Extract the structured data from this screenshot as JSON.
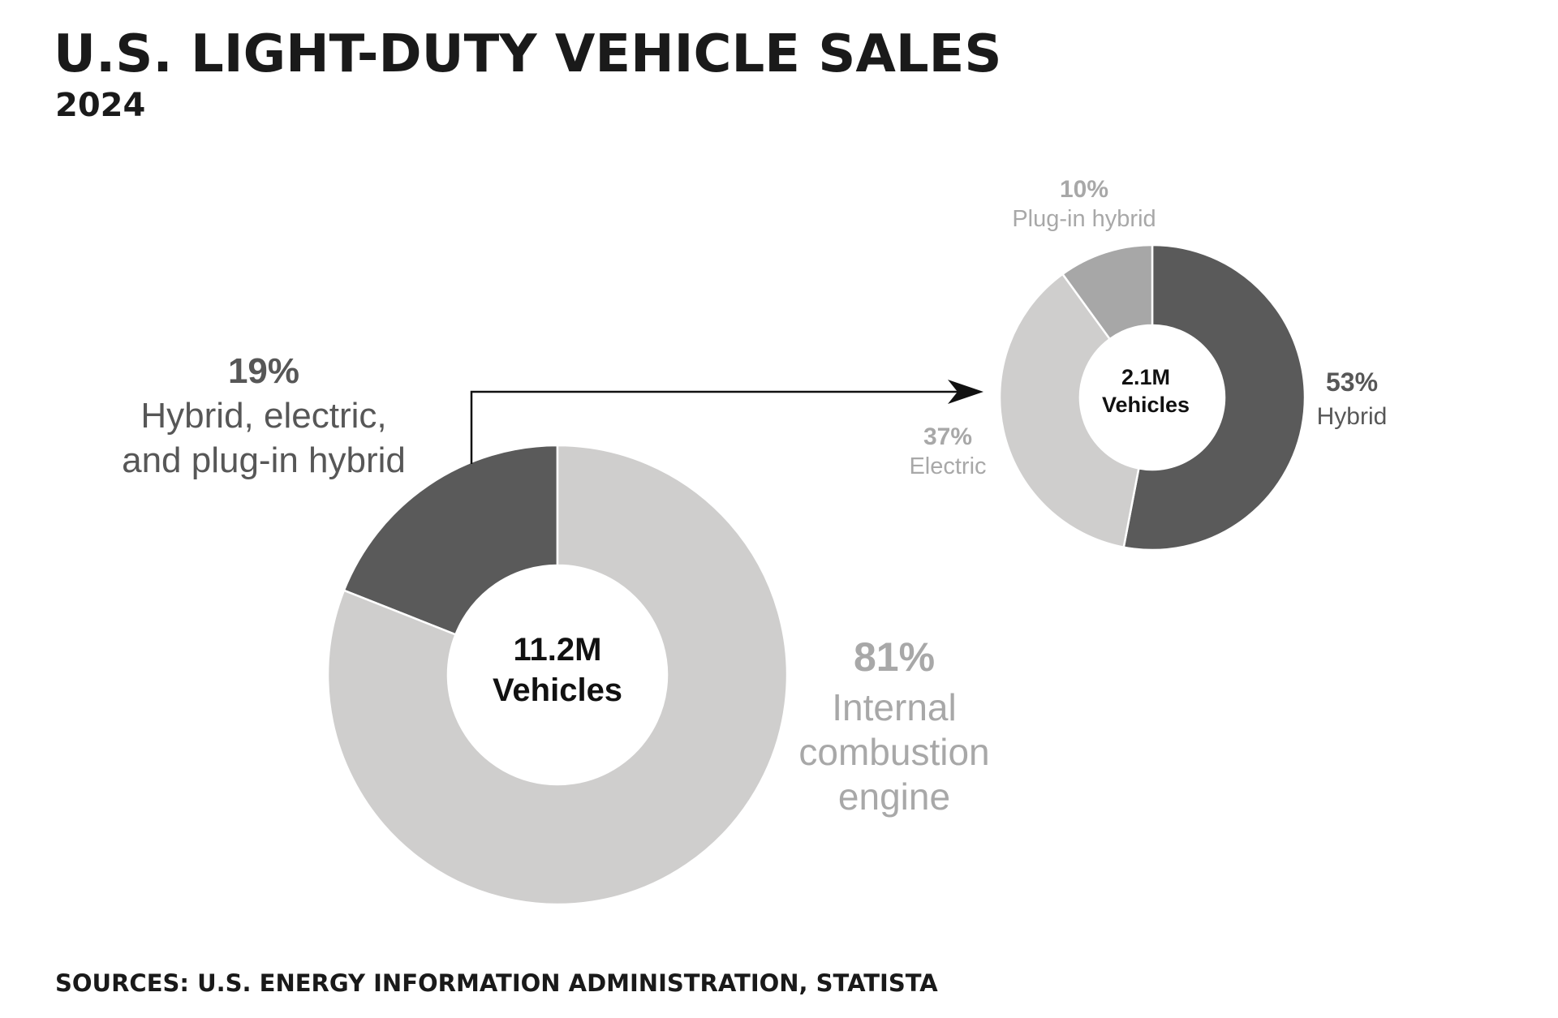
{
  "header": {
    "title": "U.S. LIGHT-DUTY VEHICLE SALES",
    "subtitle": "2024"
  },
  "footer": {
    "sources": "SOURCES: U.S. ENERGY INFORMATION ADMINISTRATION, STATISTA"
  },
  "colors": {
    "dark": "#5a5a5a",
    "light": "#cfcecd",
    "mid": "#a7a7a7",
    "text_dark": "#575757",
    "text_light": "#a8a8a8",
    "center_text": "#111111"
  },
  "chart_data": [
    {
      "type": "pie",
      "variant": "donut",
      "center_label": [
        "11.2M",
        "Vehicles"
      ],
      "slices": [
        {
          "label_lines": [
            "Hybrid, electric,",
            "and plug-in hybrid"
          ],
          "pct_label": "19%",
          "value": 19
        },
        {
          "label_lines": [
            "Internal",
            "combustion",
            "engine"
          ],
          "pct_label": "81%",
          "value": 81
        }
      ]
    },
    {
      "type": "pie",
      "variant": "donut",
      "center_label": [
        "2.1M",
        "Vehicles"
      ],
      "slices": [
        {
          "label_lines": [
            "Hybrid"
          ],
          "pct_label": "53%",
          "value": 53
        },
        {
          "label_lines": [
            "Electric"
          ],
          "pct_label": "37%",
          "value": 37
        },
        {
          "label_lines": [
            "Plug-in hybrid"
          ],
          "pct_label": "10%",
          "value": 10
        }
      ]
    }
  ]
}
